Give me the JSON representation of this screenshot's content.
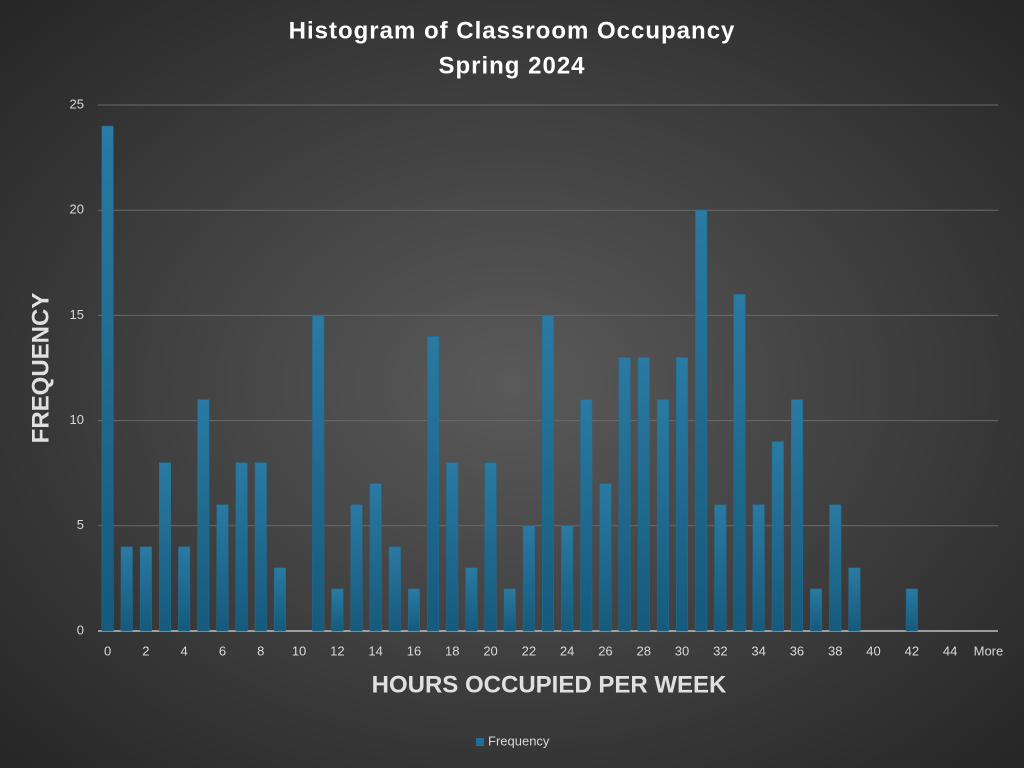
{
  "chart_data": {
    "type": "bar",
    "title": "Histogram of Classroom Occupancy",
    "subtitle": "Spring 2024",
    "x_label": "HOURS OCCUPIED PER WEEK",
    "y_label": "FREQUENCY",
    "categories": [
      "0",
      null,
      "2",
      null,
      "4",
      null,
      "6",
      null,
      "8",
      null,
      "10",
      null,
      "12",
      null,
      "14",
      null,
      "16",
      null,
      "18",
      null,
      "20",
      null,
      "22",
      null,
      "24",
      null,
      "26",
      null,
      "28",
      null,
      "30",
      null,
      "32",
      null,
      "34",
      null,
      "36",
      null,
      "38",
      null,
      "40",
      null,
      "42",
      null,
      "44",
      null,
      "More"
    ],
    "series": [
      {
        "name": "Frequency",
        "color": "#1f6f96",
        "values": [
          24,
          4,
          4,
          8,
          4,
          11,
          6,
          8,
          8,
          3,
          0,
          15,
          2,
          6,
          7,
          4,
          2,
          14,
          8,
          3,
          8,
          2,
          5,
          15,
          5,
          11,
          7,
          13,
          13,
          11,
          13,
          20,
          6,
          16,
          6,
          9,
          11,
          2,
          6,
          3,
          0,
          0,
          2,
          0,
          0,
          0,
          0
        ]
      }
    ],
    "ylim": [
      0,
      25
    ],
    "yticks": [
      0,
      5,
      10,
      15,
      20,
      25
    ],
    "grid": true,
    "legend": "bottom"
  }
}
